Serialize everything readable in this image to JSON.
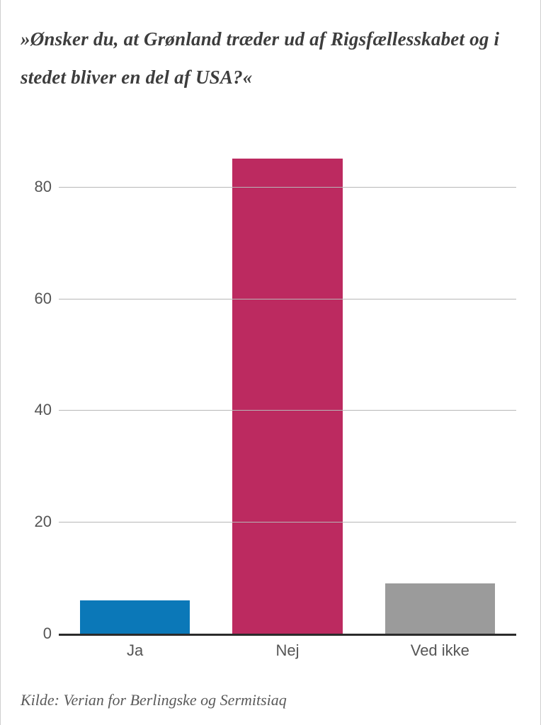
{
  "title": "»Ønsker du, at Grønland træder ud af Rigsfællesskabet og i stedet bliver en del af USA?«",
  "source": "Kilde: Verian for Berlingske og Sermitsiaq",
  "chart": {
    "type": "bar",
    "ylim": [
      0,
      90
    ],
    "yticks": [
      0,
      20,
      40,
      60,
      80
    ],
    "ytick_labels": [
      "0",
      "20",
      "40",
      "60",
      "80"
    ],
    "grid_color": "#b7b7b7",
    "axis_color": "#2b2b2b",
    "background_color": "#ffffff",
    "tick_font_color": "#555555",
    "tick_fontsize": 22,
    "title_fontsize": 27,
    "title_color": "#3d3d3d",
    "bar_width": 0.72,
    "categories": [
      "Ja",
      "Nej",
      "Ved ikke"
    ],
    "values": [
      6,
      85,
      9
    ],
    "bar_colors": [
      "#0b78b8",
      "#bc2a60",
      "#9b9b9b"
    ]
  }
}
